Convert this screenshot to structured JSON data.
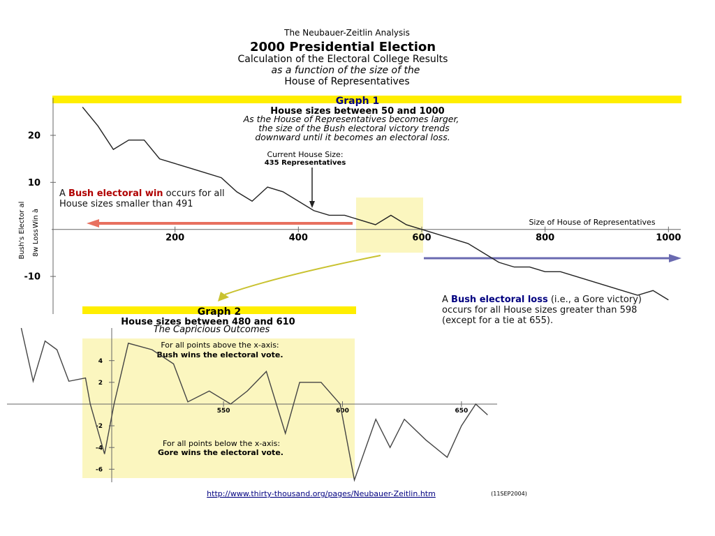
{
  "header": {
    "supertitle": "The Neubauer-Zeitlin Analysis",
    "title": "2000 Presidential Election",
    "lines": [
      "Calculation of the Electoral College Results",
      "as a function of the size of the",
      "House of Representatives"
    ]
  },
  "chart_data": [
    {
      "type": "line",
      "title": "Graph 1",
      "subtitle": "House sizes between 50 and 1000",
      "note": [
        "As the House of Representatives becomes larger,",
        "the size of the Bush electoral victory trends",
        "downward until it becomes an electoral loss."
      ],
      "current": [
        "Current House Size:",
        "435 Representatives"
      ],
      "x_label": "Size of House of Representatives",
      "y_label": [
        "Bush's Elector al",
        "Win à",
        "8w Loss"
      ],
      "win": {
        "prefix": "A ",
        "emphasis": "Bush electoral win",
        "rest": " occurs for all House sizes smaller than 491"
      },
      "loss": {
        "prefix": "A ",
        "emphasis": "Bush electoral loss",
        "rest": " (i.e., a Gore victory) occurs for all House sizes greater than 598 (except for a tie at 655)."
      },
      "x": [
        50,
        75,
        100,
        125,
        150,
        175,
        200,
        225,
        250,
        275,
        300,
        325,
        350,
        375,
        400,
        425,
        450,
        475,
        500,
        525,
        550,
        575,
        600,
        625,
        650,
        675,
        700,
        725,
        750,
        775,
        800,
        825,
        850,
        875,
        900,
        925,
        950,
        975,
        1000
      ],
      "values": [
        26,
        22,
        17,
        19,
        19,
        15,
        14,
        13,
        12,
        11,
        8,
        6,
        9,
        8,
        6,
        4,
        3,
        3,
        2,
        1,
        3,
        1,
        0,
        -1,
        -2,
        -3,
        -5,
        -7,
        -8,
        -8,
        -9,
        -9,
        -10,
        -11,
        -12,
        -13,
        -14,
        -13,
        -15
      ],
      "color": "#222222",
      "xlim": [
        0,
        1020
      ],
      "ylim": [
        -18,
        28
      ],
      "xticks": [
        200,
        400,
        600,
        800,
        1000
      ],
      "yticks": [
        -10,
        10,
        20
      ]
    },
    {
      "type": "line",
      "title": "Graph 2",
      "subtitle": "House sizes between 480 and 610",
      "note": [
        "The Capricious Outcomes"
      ],
      "above": [
        "For all points above the x-axis:",
        "Bush wins the electoral vote."
      ],
      "below": [
        "For all points below the x-axis:",
        "Gore wins the electoral vote."
      ],
      "x": [
        465,
        470,
        475,
        480,
        485,
        492,
        494,
        500,
        504,
        510,
        520,
        529,
        535,
        544,
        553,
        560,
        568,
        576,
        582,
        591,
        599,
        605,
        614,
        620,
        626,
        635,
        644,
        650,
        656,
        661
      ],
      "values": [
        7,
        2.1,
        5.8,
        5,
        2.1,
        2.4,
        0,
        -4.6,
        0,
        5.6,
        5,
        3.7,
        0.2,
        1.2,
        0,
        1.2,
        3,
        -2.7,
        2,
        2,
        0,
        -7,
        -1.4,
        -4,
        -1.4,
        -3.3,
        -4.9,
        -2,
        0,
        -1
      ],
      "color": "#444444",
      "xlim": [
        459,
        665
      ],
      "ylim": [
        -7.2,
        7
      ],
      "xticks": [
        550,
        600,
        650
      ],
      "yticks": [
        -6,
        -4,
        -2,
        2,
        4
      ]
    }
  ],
  "footer": {
    "link": "http://www.thirty-thousand.org/pages/Neubauer-Zeitlin.htm",
    "date": "(11SEP2004)"
  }
}
